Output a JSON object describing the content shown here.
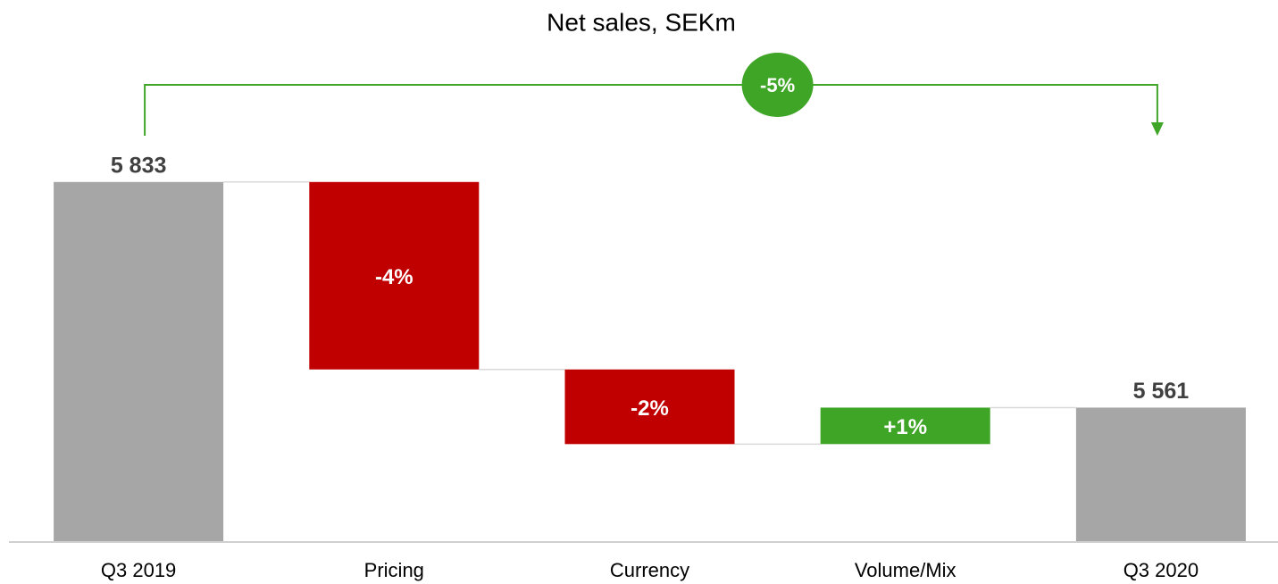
{
  "chart_data": {
    "type": "waterfall",
    "title": "Net sales, SEKm",
    "annotation": "-5%",
    "categories": [
      "Q3 2019",
      "Pricing",
      "Currency",
      "Volume/Mix",
      "Q3 2020"
    ],
    "values": [
      5833,
      -226,
      -90,
      44,
      5561
    ],
    "value_labels": [
      "5 833",
      "-4%",
      "-2%",
      "+1%",
      "5 561"
    ],
    "colors": [
      "#a6a6a6",
      "#c00000",
      "#c00000",
      "#3fa526",
      "#a6a6a6"
    ],
    "annotation_color": "#3fa526",
    "ylim": [
      5400,
      5850
    ]
  }
}
